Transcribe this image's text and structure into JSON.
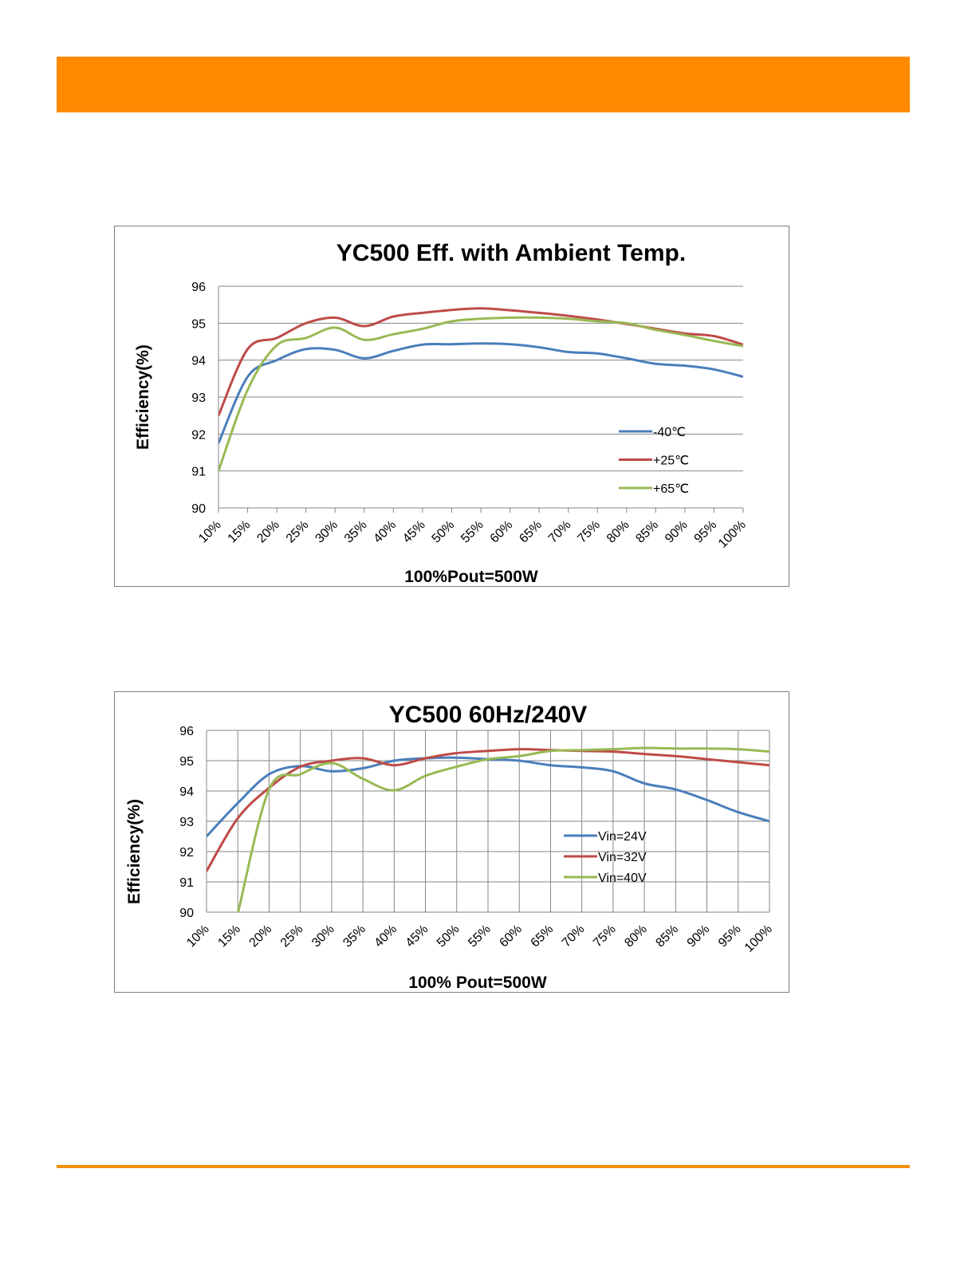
{
  "page": {
    "accent_color": "#ff8a00",
    "line_color": "#f0900c"
  },
  "chart_data": [
    {
      "type": "line",
      "title": "YC500 Eff. with Ambient Temp.",
      "xlabel": "100%Pout=500W",
      "ylabel": "Efficiency(%)",
      "categories": [
        "10%",
        "15%",
        "20%",
        "25%",
        "30%",
        "35%",
        "40%",
        "45%",
        "50%",
        "55%",
        "60%",
        "65%",
        "70%",
        "75%",
        "80%",
        "85%",
        "90%",
        "95%",
        "100%"
      ],
      "ylim": [
        90,
        96
      ],
      "yticks": [
        90,
        91,
        92,
        93,
        94,
        95,
        96
      ],
      "grid": "horizontal",
      "legend": "inside-bottom-right",
      "series": [
        {
          "name": "-40℃",
          "color": "#4a7ebb",
          "values": [
            91.75,
            93.55,
            94.0,
            94.3,
            94.28,
            94.05,
            94.25,
            94.42,
            94.43,
            94.45,
            94.43,
            94.35,
            94.22,
            94.18,
            94.05,
            93.9,
            93.85,
            93.75,
            93.55
          ]
        },
        {
          "name": "+25℃",
          "color": "#be4b48",
          "values": [
            92.5,
            94.3,
            94.6,
            95.0,
            95.15,
            94.92,
            95.18,
            95.28,
            95.36,
            95.4,
            95.35,
            95.28,
            95.2,
            95.1,
            94.98,
            94.85,
            94.72,
            94.65,
            94.42
          ]
        },
        {
          "name": "+65℃",
          "color": "#98b954",
          "values": [
            91.0,
            93.2,
            94.4,
            94.6,
            94.88,
            94.55,
            94.7,
            94.85,
            95.05,
            95.12,
            95.15,
            95.15,
            95.12,
            95.05,
            95.0,
            94.82,
            94.68,
            94.52,
            94.38
          ]
        }
      ]
    },
    {
      "type": "line",
      "title": "YC500  60Hz/240V",
      "xlabel": "100% Pout=500W",
      "ylabel": "Efficiency(%)",
      "categories": [
        "10%",
        "15%",
        "20%",
        "25%",
        "30%",
        "35%",
        "40%",
        "45%",
        "50%",
        "55%",
        "60%",
        "65%",
        "70%",
        "75%",
        "80%",
        "85%",
        "90%",
        "95%",
        "100%"
      ],
      "ylim": [
        90,
        96
      ],
      "yticks": [
        90,
        91,
        92,
        93,
        94,
        95,
        96
      ],
      "grid": "both",
      "legend": "inside-bottom-right",
      "series": [
        {
          "name": "Vin=24V",
          "color": "#4a7ebb",
          "values": [
            92.5,
            93.6,
            94.55,
            94.82,
            94.65,
            94.75,
            95.0,
            95.08,
            95.1,
            95.05,
            95.0,
            94.85,
            94.78,
            94.65,
            94.25,
            94.05,
            93.7,
            93.3,
            93.0
          ]
        },
        {
          "name": "Vin=32V",
          "color": "#be4b48",
          "values": [
            91.35,
            93.1,
            94.1,
            94.8,
            95.0,
            95.08,
            94.85,
            95.08,
            95.25,
            95.32,
            95.38,
            95.35,
            95.32,
            95.3,
            95.22,
            95.15,
            95.05,
            94.95,
            94.85
          ]
        },
        {
          "name": "Vin=40V",
          "color": "#98b954",
          "values": [
            null,
            89.95,
            94.05,
            94.55,
            94.92,
            94.4,
            94.02,
            94.5,
            94.8,
            95.05,
            95.15,
            95.32,
            95.35,
            95.38,
            95.42,
            95.4,
            95.4,
            95.38,
            95.3
          ]
        }
      ]
    }
  ]
}
